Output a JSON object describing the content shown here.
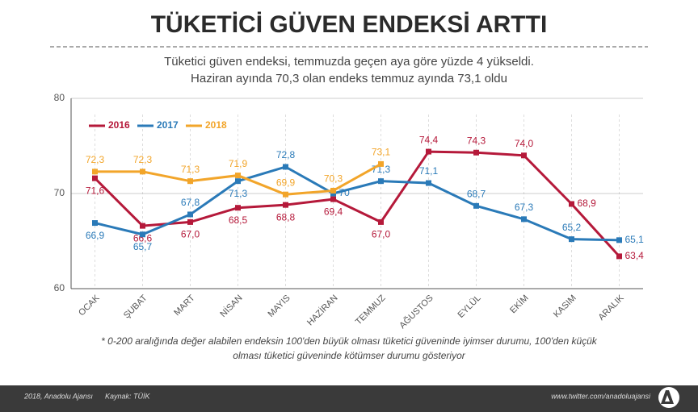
{
  "chart_data": {
    "type": "line",
    "title": "TÜKETİCİ GÜVEN ENDEKSİ ARTTI",
    "subtitle": [
      "Tüketici güven endeksi, temmuzda geçen aya göre yüzde 4 yükseldi.",
      "Haziran ayında 70,3 olan endeks temmuz ayında 73,1 oldu"
    ],
    "categories": [
      "OCAK",
      "ŞUBAT",
      "MART",
      "NİSAN",
      "MAYIS",
      "HAZİRAN",
      "TEMMUZ",
      "AĞUSTOS",
      "EYLÜL",
      "EKİM",
      "KASIM",
      "ARALIK"
    ],
    "series": [
      {
        "name": "2016",
        "color": "#b5193a",
        "values": [
          71.6,
          66.6,
          67.0,
          68.5,
          68.8,
          69.4,
          67.0,
          74.4,
          74.3,
          74.0,
          68.9,
          63.4
        ],
        "value_labels": [
          "71,6",
          "66,6",
          "67,0",
          "68,5",
          "68,8",
          "69,4",
          "67,0",
          "74,4",
          "74,3",
          "74,0",
          "68,9",
          "63,4"
        ]
      },
      {
        "name": "2017",
        "color": "#2a7ab8",
        "values": [
          66.9,
          65.7,
          67.8,
          71.3,
          72.8,
          70,
          71.3,
          71.1,
          68.7,
          67.3,
          65.2,
          65.1
        ],
        "value_labels": [
          "66,9",
          "65,7",
          "67,8",
          "71,3",
          "72,8",
          "70",
          "71,3",
          "71,1",
          "68,7",
          "67,3",
          "65,2",
          "65,1"
        ]
      },
      {
        "name": "2018",
        "color": "#f2a52a",
        "values": [
          72.3,
          72.3,
          71.3,
          71.9,
          69.9,
          70.3,
          73.1,
          null,
          null,
          null,
          null,
          null
        ],
        "value_labels": [
          "72,3",
          "72,3",
          "71,3",
          "71,9",
          "69,9",
          "70,3",
          "73,1",
          null,
          null,
          null,
          null,
          null
        ]
      }
    ],
    "ylim": [
      60,
      80
    ],
    "yticks": [
      60,
      70,
      80
    ],
    "footnote": [
      "* 0-200 aralığında değer alabilen endeksin 100'den büyük olması tüketici güveninde iyimser durumu, 100'den küçük",
      "olması tüketici güveninde kötümser durumu gösteriyor"
    ],
    "footer": {
      "credit": "2018, Anadolu Ajansı",
      "source": "Kaynak: TÜİK",
      "url": "www.twitter.com/anadoluajansi"
    }
  }
}
